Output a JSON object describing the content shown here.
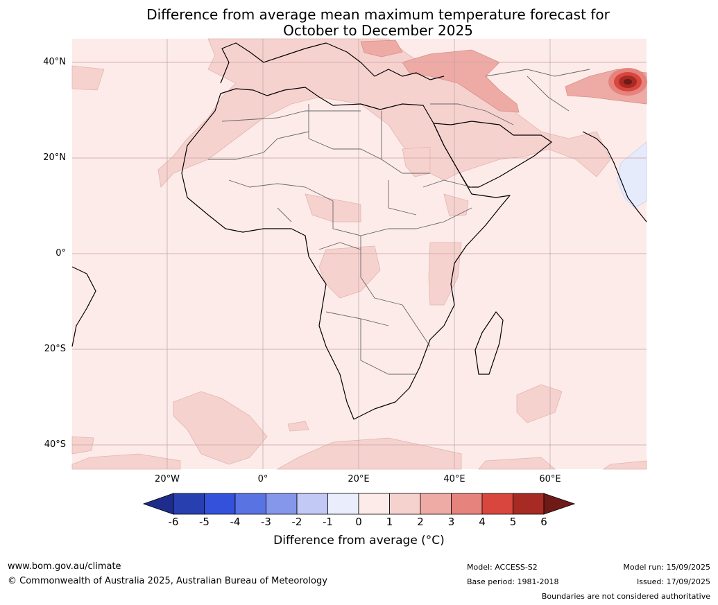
{
  "title": {
    "line1": "Difference from average mean maximum temperature forecast for",
    "line2": "October to December 2025"
  },
  "axes": {
    "lat_labels": [
      "40°N",
      "20°N",
      "0°",
      "20°S",
      "40°S"
    ],
    "lon_labels": [
      "20°W",
      "0°",
      "20°E",
      "40°E",
      "60°E"
    ]
  },
  "colorbar": {
    "title": "Difference from average (°C)",
    "ticks": [
      "-6",
      "-5",
      "-4",
      "-3",
      "-2",
      "-1",
      "0",
      "1",
      "2",
      "3",
      "4",
      "5",
      "6"
    ],
    "colors": [
      "#1e2d8c",
      "#283fb0",
      "#3451dc",
      "#5a73e3",
      "#8597ea",
      "#c1c9f4",
      "#eaedfb",
      "#fcebe9",
      "#f6d2cf",
      "#eeaaa5",
      "#e6837d",
      "#d8463d",
      "#a82a25",
      "#6e1a16"
    ]
  },
  "map_colors": {
    "ocean_base": "#fcebe9",
    "level1": "#f6d2cf",
    "level2": "#eeaaa5",
    "level3": "#e6837d",
    "level4": "#d8463d",
    "level5": "#a82a25",
    "level6": "#6e1a16",
    "cool": "#e6ebfb"
  },
  "footer": {
    "url": "www.bom.gov.au/climate",
    "copyright": "© Commonwealth of Australia 2025, Australian Bureau of Meteorology",
    "model": "Model: ACCESS-S2",
    "base_period": "Base period: 1981-2018",
    "model_run": "Model run: 15/09/2025",
    "issued": "Issued: 17/09/2025",
    "disclaimer": "Boundaries are not considered authoritative"
  }
}
